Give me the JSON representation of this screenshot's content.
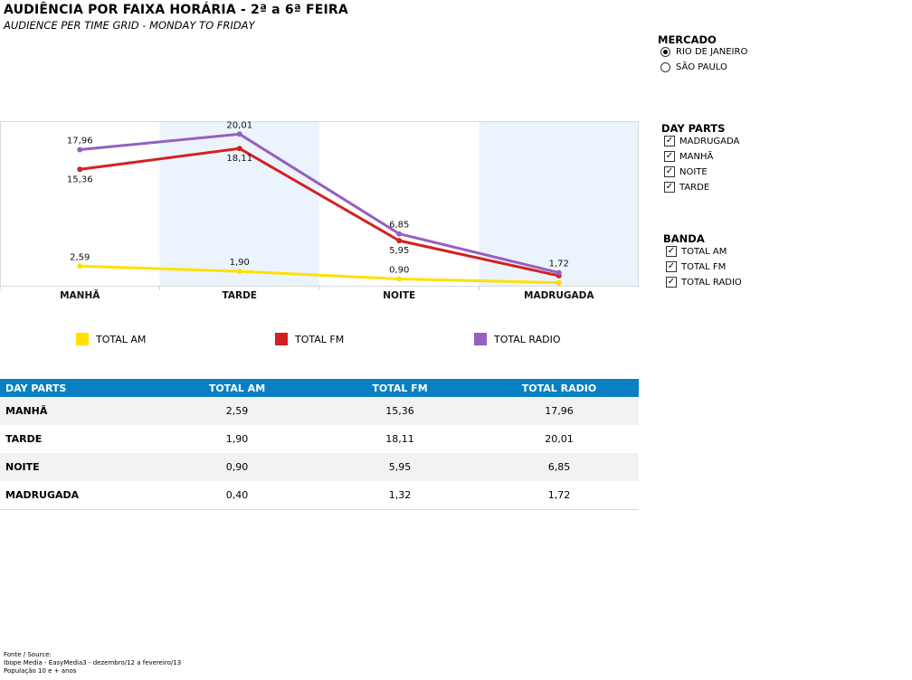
{
  "header": {
    "title": "AUDIÊNCIA POR FAIXA HORÁRIA - 2ª a 6ª FEIRA",
    "subtitle": "AUDIENCE PER TIME GRID - MONDAY TO FRIDAY"
  },
  "chart_data": {
    "type": "line",
    "categories": [
      "MANHÃ",
      "TARDE",
      "NOITE",
      "MADRUGADA"
    ],
    "series": [
      {
        "name": "TOTAL AM",
        "color": "#ffe000",
        "values": [
          2.59,
          1.9,
          0.9,
          0.4
        ],
        "labels": [
          "2,59",
          "1,90",
          "0,90",
          ""
        ]
      },
      {
        "name": "TOTAL FM",
        "color": "#d42020",
        "values": [
          15.36,
          18.11,
          5.95,
          1.32
        ],
        "labels": [
          "15,36",
          "18,11",
          "5,95",
          ""
        ]
      },
      {
        "name": "TOTAL RADIO",
        "color": "#9560bf",
        "values": [
          17.96,
          20.01,
          6.85,
          1.72
        ],
        "labels": [
          "17,96",
          "20,01",
          "6,85",
          "1,72"
        ]
      }
    ],
    "ylim": [
      0,
      21
    ],
    "grid": false,
    "shaded_bands": [
      "TARDE",
      "MADRUGADA"
    ],
    "band_color": "#ebf3fd",
    "legend_position": "bottom"
  },
  "legend": [
    {
      "label": "TOTAL AM",
      "color": "#ffe000"
    },
    {
      "label": "TOTAL FM",
      "color": "#d42020"
    },
    {
      "label": "TOTAL RADIO",
      "color": "#9560bf"
    }
  ],
  "table": {
    "header_color": "#0a7fc1",
    "columns": [
      "DAY PARTS",
      "TOTAL AM",
      "TOTAL FM",
      "TOTAL RADIO"
    ],
    "rows": [
      [
        "MANHÃ",
        "2,59",
        "15,36",
        "17,96"
      ],
      [
        "TARDE",
        "1,90",
        "18,11",
        "20,01"
      ],
      [
        "NOITE",
        "0,90",
        "5,95",
        "6,85"
      ],
      [
        "MADRUGADA",
        "0,40",
        "1,32",
        "1,72"
      ]
    ]
  },
  "filters": {
    "mercado": {
      "title": "MERCADO",
      "options": [
        {
          "label": "RIO DE JANEIRO",
          "selected": true
        },
        {
          "label": "SÃO PAULO",
          "selected": false
        }
      ]
    },
    "day_parts": {
      "title": "DAY PARTS",
      "options": [
        {
          "label": "MADRUGADA",
          "checked": true
        },
        {
          "label": "MANHÃ",
          "checked": true
        },
        {
          "label": "NOITE",
          "checked": true
        },
        {
          "label": "TARDE",
          "checked": true
        }
      ]
    },
    "banda": {
      "title": "BANDA",
      "options": [
        {
          "label": "TOTAL AM",
          "checked": true
        },
        {
          "label": "TOTAL FM",
          "checked": true
        },
        {
          "label": "TOTAL RADIO",
          "checked": true
        }
      ]
    }
  },
  "footer": {
    "line1": "Fonte / Source:",
    "line2": "Ibope Media - EasyMedia3 - dezembro/12 a fevereiro/13",
    "line3": "População 10 e + anos"
  }
}
